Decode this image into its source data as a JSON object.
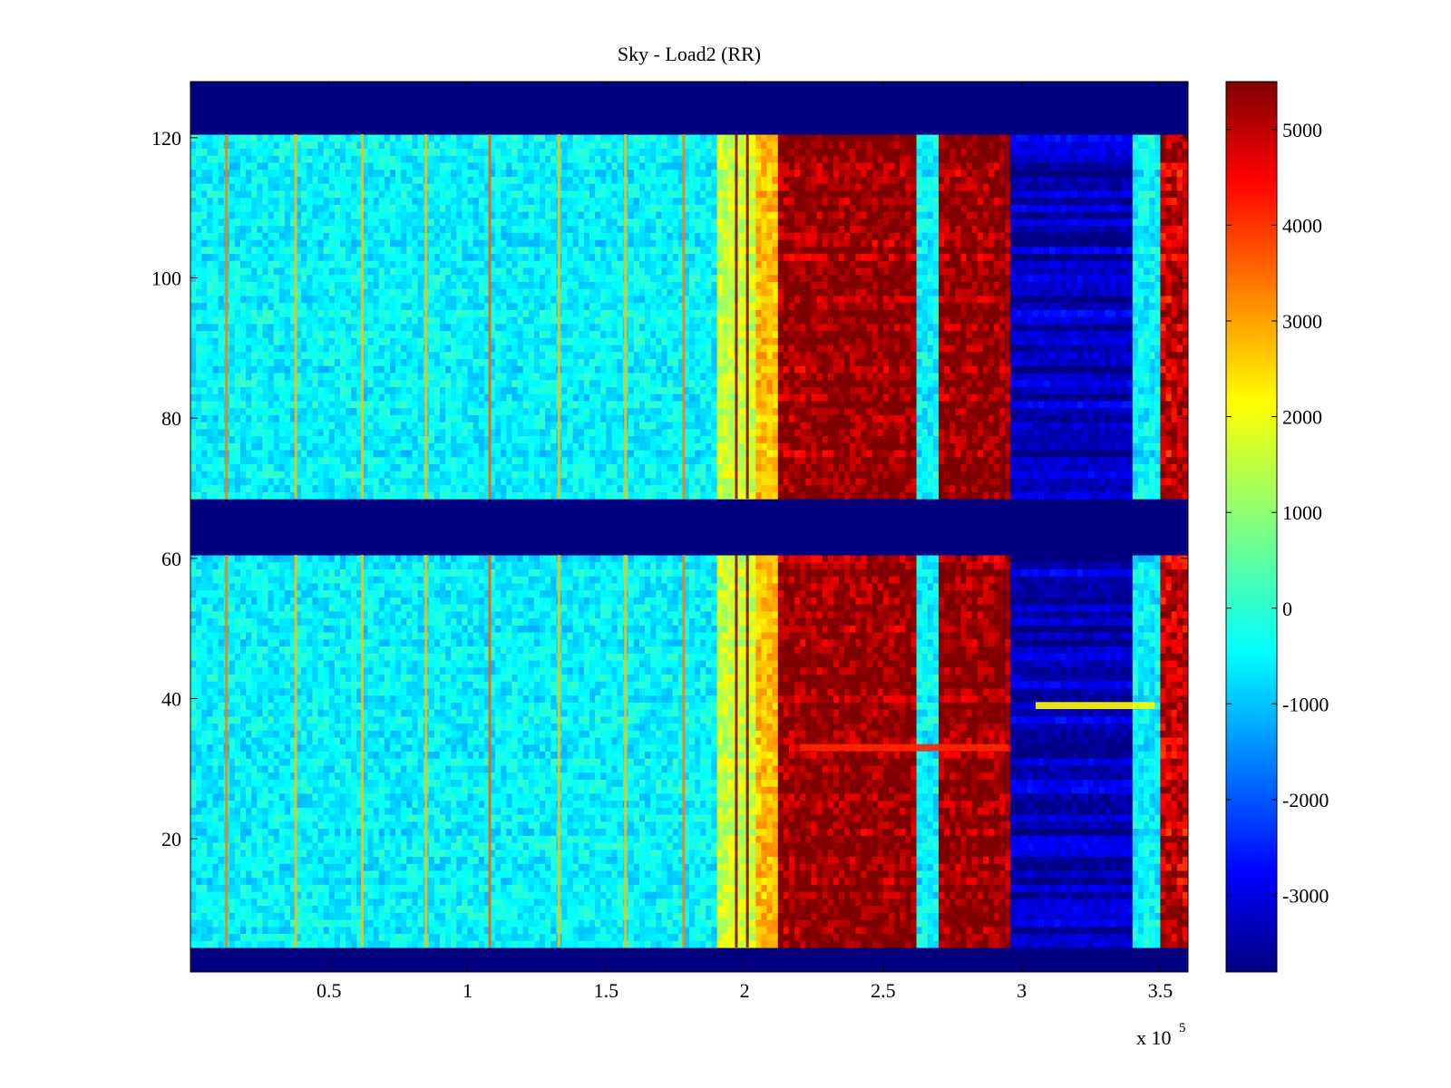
{
  "chart_data": {
    "type": "heatmap",
    "title": "Sky - Load2 (RR)",
    "xlabel": "",
    "ylabel": "",
    "x_multiplier_label": "x 10",
    "x_multiplier_exponent": "5",
    "xlim": [
      0,
      3.6
    ],
    "ylim": [
      1,
      128
    ],
    "x_ticks": [
      0.5,
      1,
      1.5,
      2,
      2.5,
      3,
      3.5
    ],
    "x_tick_labels": [
      "0.5",
      "1",
      "1.5",
      "2",
      "2.5",
      "3",
      "3.5"
    ],
    "y_ticks": [
      20,
      40,
      60,
      80,
      100,
      120
    ],
    "y_tick_labels": [
      "20",
      "40",
      "60",
      "80",
      "100",
      "120"
    ],
    "colormap": "jet",
    "clim": [
      -3800,
      5500
    ],
    "colorbar_ticks": [
      5000,
      4000,
      3000,
      2000,
      1000,
      0,
      -1000,
      -2000,
      -3000
    ],
    "colorbar_tick_labels": [
      "5000",
      "4000",
      "3000",
      "2000",
      "1000",
      "0",
      "-1000",
      "-2000",
      "-3000"
    ],
    "masked_row_bands": [
      [
        1,
        4
      ],
      [
        61,
        68
      ],
      [
        121,
        128
      ]
    ],
    "masked_value": -3800,
    "column_profile": [
      {
        "x_from": 0.0,
        "x_to": 1.9,
        "value": -400
      },
      {
        "x_from": 1.9,
        "x_to": 2.05,
        "value": 1500
      },
      {
        "x_from": 2.05,
        "x_to": 2.13,
        "value": 2600
      },
      {
        "x_from": 2.13,
        "x_to": 2.62,
        "value": 5500
      },
      {
        "x_from": 2.62,
        "x_to": 2.7,
        "value": -400
      },
      {
        "x_from": 2.7,
        "x_to": 2.96,
        "value": 5500
      },
      {
        "x_from": 2.96,
        "x_to": 3.41,
        "value": -3300
      },
      {
        "x_from": 3.41,
        "x_to": 3.5,
        "value": -400
      },
      {
        "x_from": 3.5,
        "x_to": 3.6,
        "value": 5000
      }
    ],
    "stripe_columns": [
      {
        "x": 0.13,
        "value": 3200
      },
      {
        "x": 0.38,
        "value": 2600
      },
      {
        "x": 0.62,
        "value": 2600
      },
      {
        "x": 0.85,
        "value": 2600
      },
      {
        "x": 1.08,
        "value": 3500
      },
      {
        "x": 1.33,
        "value": 2600
      },
      {
        "x": 1.57,
        "value": 2600
      },
      {
        "x": 1.78,
        "value": 3200
      },
      {
        "x": 1.97,
        "value": 5500
      },
      {
        "x": 2.01,
        "value": 5500
      }
    ],
    "row_events": [
      {
        "y": 39,
        "x_from": 3.05,
        "x_to": 3.48,
        "value": 2000
      },
      {
        "y": 33,
        "x_from": 2.2,
        "x_to": 2.95,
        "value": 4000
      },
      {
        "y": 43,
        "x_from": 3.0,
        "x_to": 3.4,
        "value": -3500
      }
    ]
  }
}
